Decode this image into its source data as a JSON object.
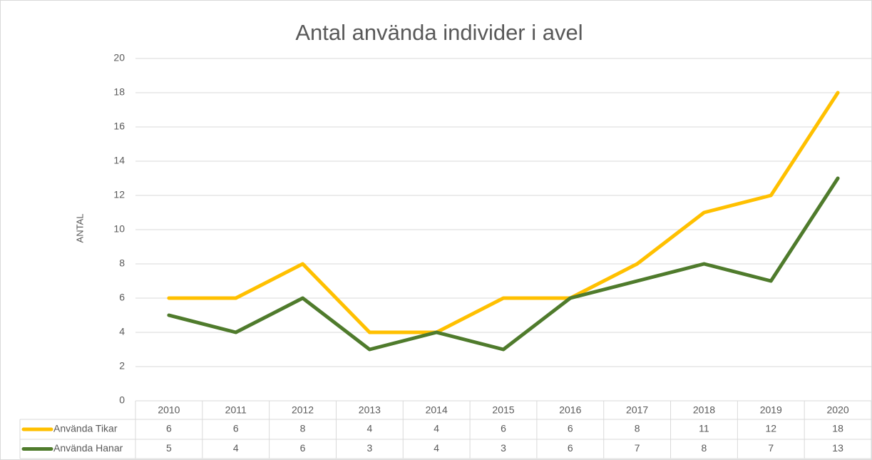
{
  "chart_data": {
    "type": "line",
    "title": "Antal använda individer i avel",
    "y_label": "ANTAL",
    "categories": [
      "2010",
      "2011",
      "2012",
      "2013",
      "2014",
      "2015",
      "2016",
      "2017",
      "2018",
      "2019",
      "2020"
    ],
    "series": [
      {
        "name": "Använda Tikar",
        "color": "#FFC000",
        "values": [
          6,
          6,
          8,
          4,
          4,
          6,
          6,
          8,
          11,
          12,
          18
        ]
      },
      {
        "name": "Använda Hanar",
        "color": "#4F7B2C",
        "values": [
          5,
          4,
          6,
          3,
          4,
          3,
          6,
          7,
          8,
          7,
          13
        ]
      }
    ],
    "ylim": [
      0,
      20
    ],
    "yticks": [
      0,
      2,
      4,
      6,
      8,
      10,
      12,
      14,
      16,
      18,
      20
    ],
    "grid": true,
    "data_table": true
  }
}
